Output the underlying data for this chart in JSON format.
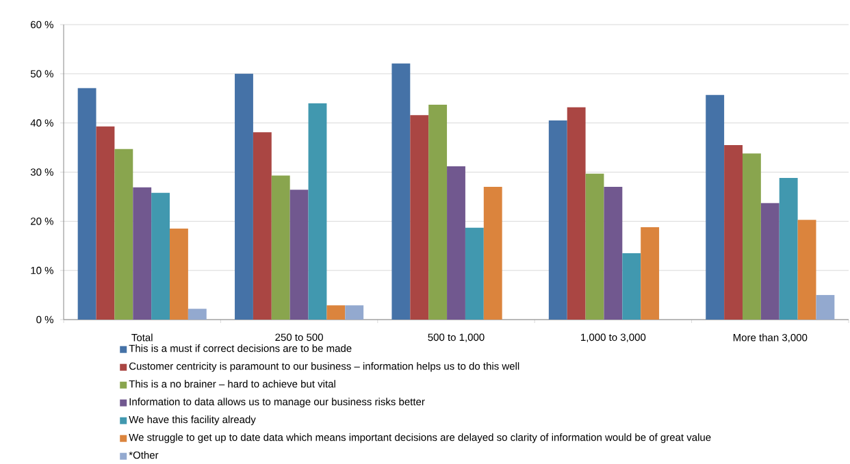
{
  "chart_data": {
    "type": "bar",
    "categories": [
      "Total",
      "250 to 500",
      "500 to 1,000",
      "1,000 to 3,000",
      "More than 3,000"
    ],
    "series": [
      {
        "name": "This is a must if correct decisions are to be made",
        "color": "#4572a7",
        "values": [
          47.1,
          50.0,
          52.1,
          40.5,
          45.7
        ]
      },
      {
        "name": "Customer centricity is paramount to our business – information helps us to do this well",
        "color": "#aa4643",
        "values": [
          39.3,
          38.1,
          41.6,
          43.2,
          35.5
        ]
      },
      {
        "name": "This is a no brainer – hard to achieve but vital",
        "color": "#89a54e",
        "values": [
          34.7,
          29.3,
          43.7,
          29.7,
          33.8
        ]
      },
      {
        "name": "Information to data allows us to manage our business risks better",
        "color": "#71588f",
        "values": [
          26.9,
          26.4,
          31.2,
          27.0,
          23.7
        ]
      },
      {
        "name": "We have this facility already",
        "color": "#4198af",
        "values": [
          25.8,
          44.0,
          18.7,
          13.5,
          28.8
        ]
      },
      {
        "name": "We struggle to get up to date data which means important decisions are delayed so clarity of information would be of great value",
        "color": "#db843d",
        "values": [
          18.5,
          2.9,
          27.0,
          18.8,
          20.3
        ]
      },
      {
        "name": "*Other",
        "color": "#93a9cf",
        "values": [
          2.2,
          2.9,
          null,
          null,
          5.0
        ]
      }
    ],
    "ylim": [
      0,
      60
    ],
    "yticks": [
      {
        "value": 0,
        "label": "0 %"
      },
      {
        "value": 10,
        "label": "10 %"
      },
      {
        "value": 20,
        "label": "20 %"
      },
      {
        "value": 30,
        "label": "30 %"
      },
      {
        "value": 40,
        "label": "40 %"
      },
      {
        "value": 50,
        "label": "50 %"
      },
      {
        "value": 60,
        "label": "60 %"
      }
    ],
    "grid": "y",
    "legend": "bottom"
  }
}
